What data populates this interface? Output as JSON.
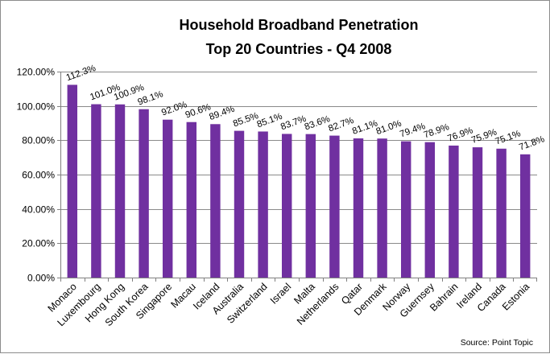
{
  "chart_data": {
    "type": "bar",
    "title": [
      "Household Broadband Penetration",
      "Top 20 Countries - Q4 2008"
    ],
    "categories": [
      "Monaco",
      "Luxembourg",
      "Hong Kong",
      "South Korea",
      "Singapore",
      "Macau",
      "Iceland",
      "Australia",
      "Switzerland",
      "Israel",
      "Malta",
      "Netherlands",
      "Qatar",
      "Denmark",
      "Norway",
      "Guernsey",
      "Bahrain",
      "Ireland",
      "Canada",
      "Estonia"
    ],
    "values": [
      112.3,
      101.0,
      100.9,
      98.1,
      92.0,
      90.6,
      89.4,
      85.5,
      85.1,
      83.7,
      83.6,
      82.7,
      81.1,
      81.0,
      79.4,
      78.9,
      76.9,
      75.9,
      75.1,
      71.8
    ],
    "data_labels": [
      "112.3%",
      "101.0%",
      "100.9%",
      "98.1%",
      "92.0%",
      "90.6%",
      "89.4%",
      "85.5%",
      "85.1%",
      "83.7%",
      "83.6%",
      "82.7%",
      "81.1%",
      "81.0%",
      "79.4%",
      "78.9%",
      "76.9%",
      "75.9%",
      "75.1%",
      "71.8%"
    ],
    "y_ticks": [
      0,
      20,
      40,
      60,
      80,
      100,
      120
    ],
    "y_tick_labels": [
      "0.00%",
      "20.00%",
      "40.00%",
      "60.00%",
      "80.00%",
      "100.00%",
      "120.00%"
    ],
    "ylim": [
      0,
      120
    ],
    "xlabel": "",
    "ylabel": "",
    "grid": true,
    "legend": "none",
    "bar_color": "#7030a0",
    "source": "Source: Point Topic"
  }
}
